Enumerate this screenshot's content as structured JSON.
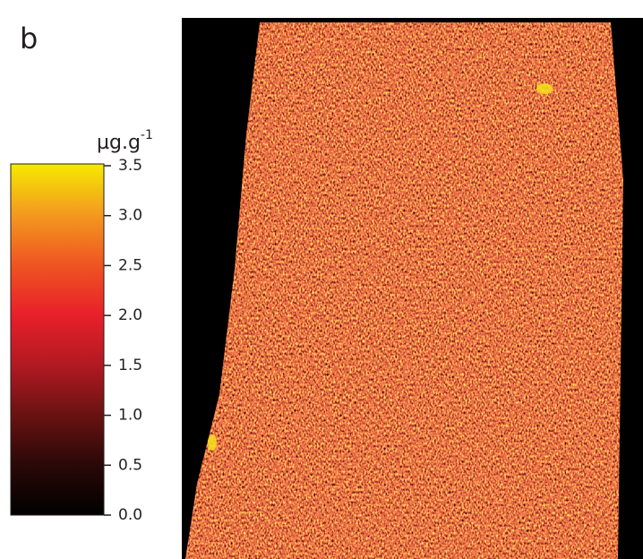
{
  "panel_label": "b",
  "colorbar": {
    "unit_base": "µg.g",
    "unit_exponent": "-1",
    "ticks": [
      "3.5",
      "3.0",
      "2.5",
      "2.0",
      "1.5",
      "1.0",
      "0.5",
      "0.0"
    ]
  }
}
